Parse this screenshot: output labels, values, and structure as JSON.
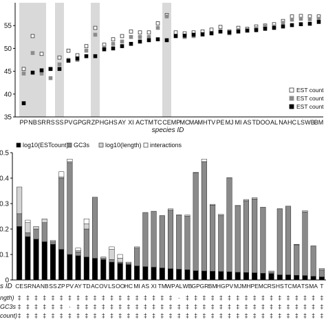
{
  "chart_data": [
    {
      "type": "scatter",
      "title": "",
      "xlabel": "species ID",
      "ylabel": "",
      "ylim": [
        35,
        60
      ],
      "yticks": [
        35,
        40,
        45,
        50,
        55
      ],
      "grid": false,
      "legend_position": "bottom-right",
      "categories": [
        "PP",
        "NB",
        "SR",
        "RS",
        "SS",
        "PV",
        "GP",
        "GR",
        "ZP",
        "HG",
        "HS",
        "AY",
        "XI",
        "AC",
        "TM",
        "TC",
        "CE",
        "MP",
        "MC",
        "MA",
        "MH",
        "TV",
        "PE",
        "MJ",
        "MI",
        "AS",
        "TD",
        "OO",
        "AL",
        "NA",
        "HC",
        "LS",
        "WB",
        "BM"
      ],
      "highlighted_categories": [
        "PP",
        "NB",
        "SR",
        "SS",
        "ZP",
        "CE"
      ],
      "series": [
        {
          "name": "EST count",
          "marker": "open-square",
          "values": [
            45.5,
            52.7,
            48.8,
            45.5,
            48.0,
            49.5,
            48.5,
            50.5,
            54.5,
            50.8,
            52.0,
            52.7,
            53.7,
            53.5,
            53.5,
            55.5,
            57.3,
            53.5,
            53.3,
            53.5,
            53.7,
            54.1,
            54.7,
            53.7,
            54.5,
            54.3,
            54.8,
            55.0,
            55.3,
            56.0,
            57.0,
            57.1,
            57.0,
            57.0
          ]
        },
        {
          "name": "EST count",
          "marker": "grey-square",
          "values": [
            44.5,
            49.0,
            44.5,
            43.5,
            46.5,
            47.5,
            47.5,
            49.5,
            53.0,
            50.2,
            51.0,
            51.5,
            52.5,
            52.5,
            52.5,
            54.5,
            57.0,
            52.7,
            52.5,
            52.7,
            53.0,
            53.4,
            53.7,
            53.3,
            54.0,
            54.0,
            54.4,
            54.8,
            54.8,
            55.6,
            56.3,
            56.5,
            56.4,
            56.5
          ]
        },
        {
          "name": "EST count",
          "marker": "black-square",
          "values": [
            38.0,
            44.7,
            45.2,
            45.5,
            45.5,
            47.3,
            47.8,
            48.3,
            48.3,
            49.8,
            50.0,
            50.5,
            51.0,
            51.5,
            51.8,
            52.0,
            51.8,
            52.7,
            52.8,
            53.0,
            53.1,
            53.3,
            53.7,
            53.5,
            53.7,
            53.9,
            54.0,
            54.3,
            54.5,
            54.8,
            55.1,
            55.3,
            55.4,
            55.8
          ]
        }
      ]
    },
    {
      "type": "bar",
      "stacked": true,
      "ylim": [
        0,
        0.5
      ],
      "yticks": [
        "0",
        "0.1",
        "0.2",
        "0.3",
        "0.4",
        "0.5"
      ],
      "legend_position": "top",
      "x_label_prefix": "s ID",
      "categories": [
        "CE",
        "SR",
        "NA",
        "NB",
        "SS",
        "ZP",
        "PV",
        "AY",
        "TD",
        "AC",
        "OV",
        "LS",
        "OO",
        "HC",
        "MI",
        "AS",
        "XI",
        "TM",
        "WP",
        "AL",
        "WB",
        "GP",
        "GR",
        "BM",
        "HG",
        "PV",
        "MJ",
        "MH",
        "PE",
        "MC",
        "RS",
        "HS",
        "TC",
        "MA",
        "TS",
        "MA",
        "T"
      ],
      "series": [
        {
          "name": "log10(ESTcount)",
          "color": "#000000",
          "values": [
            0.21,
            0.17,
            0.16,
            0.15,
            0.14,
            0.12,
            0.1,
            0.095,
            0.09,
            0.085,
            0.08,
            0.07,
            0.065,
            0.06,
            0.055,
            0.052,
            0.05,
            0.047,
            0.044,
            0.042,
            0.04,
            0.036,
            0.035,
            0.034,
            0.033,
            0.032,
            0.03,
            0.029,
            0.028,
            0.026,
            0.025,
            0.02,
            0.02,
            0.018,
            0.017,
            0.014,
            0.012
          ]
        },
        {
          "name": "GC3s",
          "color": "#8a8a8a",
          "values": [
            0.05,
            0.015,
            0.04,
            0.075,
            0.01,
            0.28,
            0.36,
            0.015,
            0.11,
            0.24,
            0.005,
            0.01,
            0.005,
            0.005,
            0.07,
            0.213,
            0.22,
            0.206,
            0.23,
            0.214,
            0.21,
            0.384,
            0.43,
            0.26,
            0.22,
            0.37,
            0.26,
            0.282,
            0.29,
            0.26,
            0.005,
            0.26,
            0.27,
            0.12,
            0.25,
            0.12,
            0.028
          ]
        },
        {
          "name": "log10(length)",
          "color": "#d4d4d4",
          "values": [
            0.105,
            0.04,
            0.01,
            0.015,
            0.005,
            0.005,
            0.005,
            0.005,
            0.02,
            0.0,
            0.005,
            0.04,
            0.015,
            0.005,
            0.005,
            0.0,
            0.0,
            0.0,
            0.005,
            0.0,
            0.005,
            0.003,
            0.0,
            0.003,
            0.005,
            0.0,
            0.003,
            0.005,
            0.005,
            0.0,
            0.005,
            0.0,
            0.0,
            0.002,
            0.005,
            0.0,
            0.005
          ]
        },
        {
          "name": "interactions",
          "color": "#ffffff",
          "values": [
            0.0,
            0.01,
            0.0,
            0.0,
            0.0,
            0.02,
            0.01,
            0.01,
            0.02,
            0.0,
            0.0,
            0.01,
            0.015,
            0.0,
            0.0,
            0.0,
            0.0,
            0.0,
            0.0,
            0.0,
            0.0,
            0.0,
            0.01,
            0.0,
            0.0,
            0.0,
            0.0,
            0.0,
            0.0,
            0.0,
            0.0,
            0.0,
            0.0,
            0.0,
            0.0,
            0.0,
            0.0
          ]
        }
      ],
      "table_rows": [
        {
          "label": "ngth)",
          "row": "ccccccccccccccccccc-ccccccccccccccccc"
        },
        {
          "label": "GC3s",
          "row": "cccccc-cccccccccccccccccccccccccccccc"
        },
        {
          "label": "count)",
          "row": "ccccccccccccccccccccccccccccccccccccc"
        }
      ]
    }
  ]
}
